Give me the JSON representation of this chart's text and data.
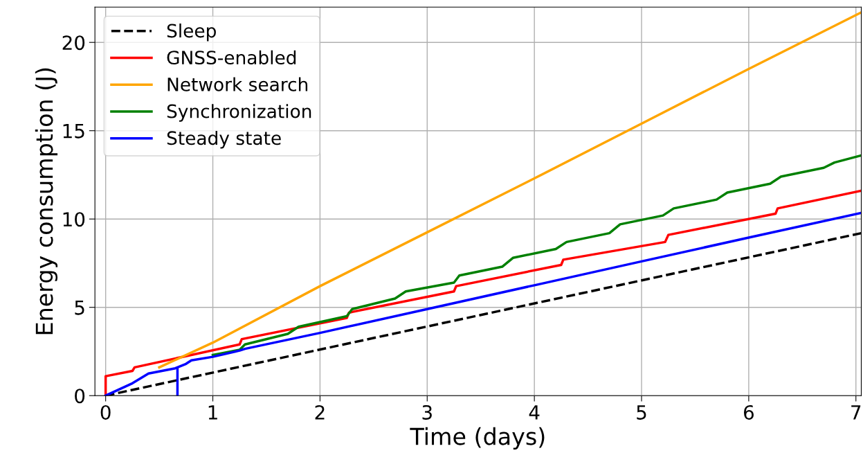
{
  "chart_data": {
    "type": "line",
    "xlabel": "Time (days)",
    "ylabel": "Energy consumption (J)",
    "xlim": [
      -0.1,
      7.05
    ],
    "ylim": [
      0,
      22
    ],
    "xticks": [
      0,
      1,
      2,
      3,
      4,
      5,
      6,
      7
    ],
    "yticks": [
      0,
      5,
      10,
      15,
      20
    ],
    "grid": true,
    "legend": "top left",
    "marker": "none",
    "series": [
      {
        "name": "Sleep",
        "color": "#000000",
        "line_style": "dashed",
        "x": [
          0,
          7.05
        ],
        "values": [
          0,
          9.2
        ]
      },
      {
        "name": "GNSS-enabled",
        "color": "#ff0000",
        "line_style": "solid",
        "x": [
          0,
          0,
          0.25,
          0.27,
          1.25,
          1.27,
          2.25,
          2.27,
          3.25,
          3.27,
          4.25,
          4.27,
          5.22,
          5.25,
          6.25,
          6.27,
          7.05
        ],
        "values": [
          0,
          1.1,
          1.4,
          1.6,
          2.9,
          3.2,
          4.4,
          4.7,
          5.9,
          6.2,
          7.4,
          7.7,
          8.7,
          9.1,
          10.3,
          10.6,
          11.6
        ]
      },
      {
        "name": "Network search",
        "color": "#ffa500",
        "line_style": "solid",
        "x": [
          0.5,
          1,
          2,
          3,
          4,
          5,
          6,
          7.05
        ],
        "values": [
          1.6,
          3.0,
          6.2,
          9.25,
          12.3,
          15.4,
          18.5,
          21.7
        ]
      },
      {
        "name": "Synchronization",
        "color": "#008000",
        "line_style": "solid",
        "x": [
          1.0,
          1.25,
          1.3,
          1.7,
          1.8,
          2.25,
          2.3,
          2.7,
          2.8,
          3.25,
          3.3,
          3.7,
          3.8,
          4.2,
          4.3,
          4.7,
          4.8,
          5.2,
          5.3,
          5.7,
          5.8,
          6.2,
          6.3,
          6.7,
          6.8,
          7.05
        ],
        "values": [
          2.3,
          2.6,
          2.9,
          3.5,
          3.9,
          4.5,
          4.9,
          5.5,
          5.9,
          6.4,
          6.8,
          7.3,
          7.8,
          8.3,
          8.7,
          9.2,
          9.7,
          10.2,
          10.6,
          11.1,
          11.5,
          12.0,
          12.4,
          12.9,
          13.2,
          13.6
        ]
      },
      {
        "name": "Steady state",
        "color": "#0000ff",
        "line_style": "solid",
        "x": [
          0,
          0.25,
          0.4,
          0.65,
          0.67,
          0.67,
          0.67,
          0.75,
          0.8,
          1.0,
          1.25,
          1.3,
          2,
          3,
          4,
          5,
          6,
          7.05
        ],
        "values": [
          0,
          0.7,
          1.25,
          1.55,
          1.6,
          0,
          1.6,
          1.8,
          2.0,
          2.2,
          2.55,
          2.65,
          3.55,
          4.9,
          6.25,
          7.6,
          8.95,
          10.35
        ]
      }
    ]
  }
}
